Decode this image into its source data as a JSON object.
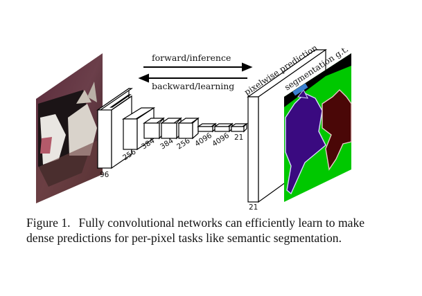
{
  "figure": {
    "arrow_forward_label": "forward/inference",
    "arrow_backward_label": "backward/learning",
    "output_label": "pixelwise prediction",
    "gt_label": "segmentation g.t.",
    "layer_sizes": [
      "96",
      "256",
      "384",
      "384",
      "256",
      "4096",
      "4096",
      "21"
    ],
    "output_size": "21",
    "colors": {
      "segmentation_background": "#00c800",
      "dog_class": "#3a0a80",
      "cat_class": "#4a0707",
      "void": "#000000",
      "arrow": "#000000"
    }
  },
  "caption": {
    "label": "Figure 1.",
    "text": "Fully convolutional networks can efficiently learn to make dense predictions for per-pixel tasks like semantic segmentation."
  }
}
